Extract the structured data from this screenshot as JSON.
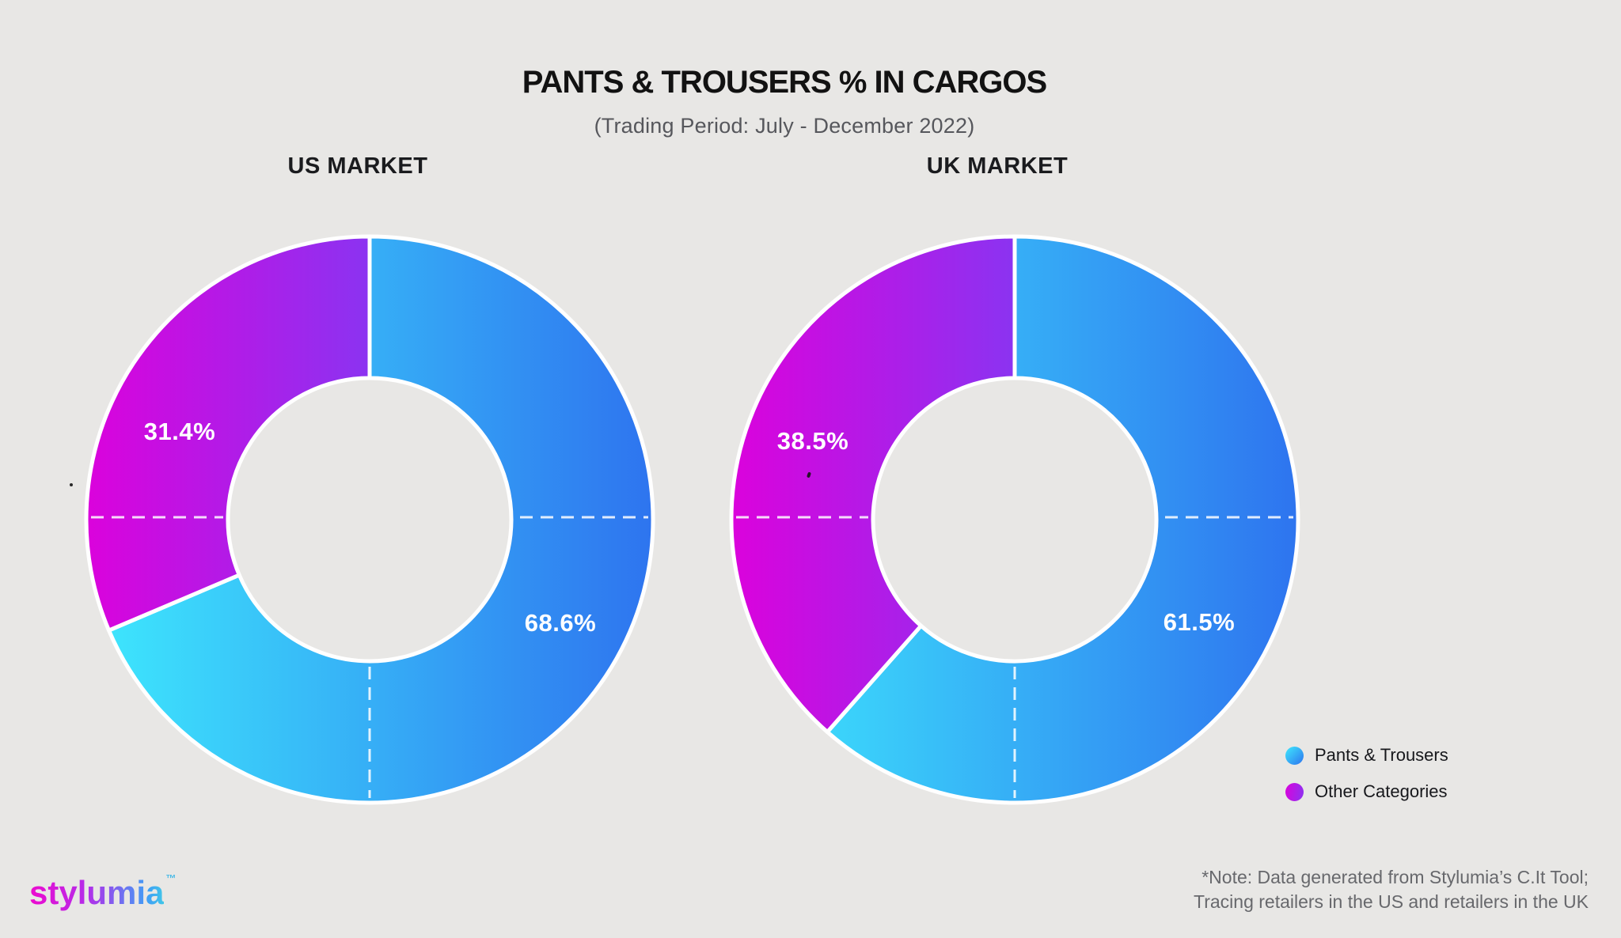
{
  "header": {
    "title": "PANTS & TROUSERS % IN CARGOS",
    "subtitle": "(Trading Period: July - December 2022)"
  },
  "chart_data": [
    {
      "type": "pie",
      "donut": true,
      "title": "US MARKET",
      "categories": [
        "Pants & Trousers",
        "Other Categories"
      ],
      "values": [
        68.6,
        31.4
      ],
      "value_labels": [
        "68.6%",
        "31.4%"
      ],
      "start_angle": "top",
      "direction": "clockwise",
      "hole_ratio": 0.5,
      "quadrant_guides": "dashed white lines at 3, 6 and 9 o'clock inside ring"
    },
    {
      "type": "pie",
      "donut": true,
      "title": "UK MARKET",
      "categories": [
        "Pants & Trousers",
        "Other Categories"
      ],
      "values": [
        61.5,
        38.5
      ],
      "value_labels": [
        "61.5%",
        "38.5%"
      ],
      "start_angle": "top",
      "direction": "clockwise",
      "hole_ratio": 0.5,
      "quadrant_guides": "dashed white lines at 3, 6 and 9 o'clock inside ring"
    }
  ],
  "legend": {
    "position": "bottom-right",
    "items": [
      {
        "label": "Pants & Trousers",
        "swatch": "blue-gradient-circle"
      },
      {
        "label": "Other Categories",
        "swatch": "magenta-gradient-circle"
      }
    ]
  },
  "footer": {
    "note_line1": "*Note: Data generated from Stylumia’s C.It Tool;",
    "note_line2": "Tracing retailers in the US and retailers in the UK",
    "logo_text": "stylumia",
    "logo_tm": "™"
  },
  "colors": {
    "background": "#e8e7e5",
    "slice_label_text": "#ffffff",
    "divider": "#ffffff",
    "blue_gradient": [
      "#3EE9FD",
      "#2E74EF"
    ],
    "magenta_gradient": [
      "#DB02DC",
      "#8B33F1"
    ]
  }
}
